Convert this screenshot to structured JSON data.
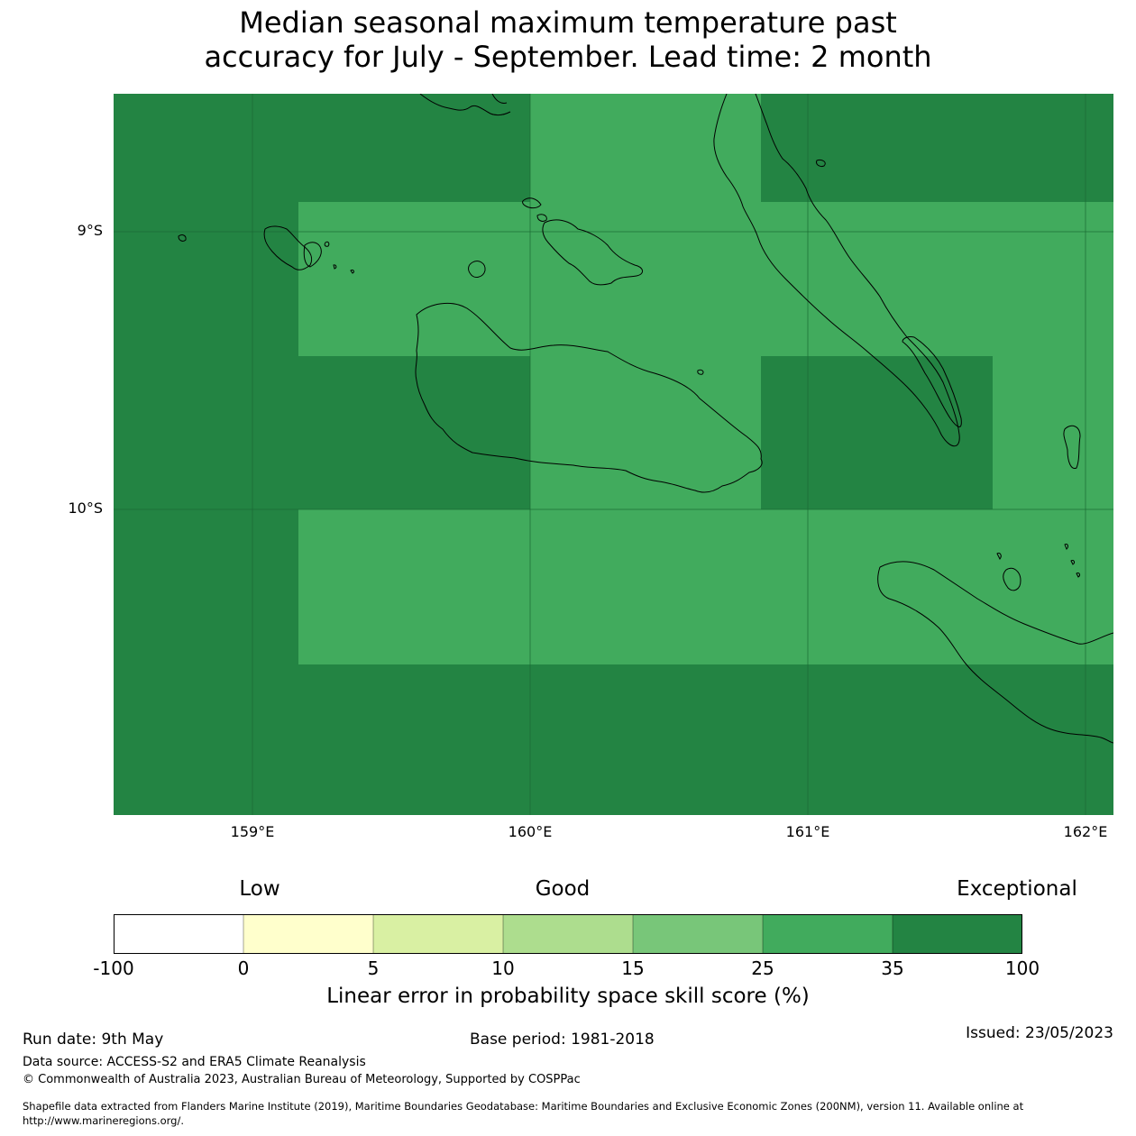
{
  "title": {
    "line1": "Median seasonal maximum temperature past",
    "line2": "accuracy for July - September. Lead time: 2 month"
  },
  "map": {
    "lat_labels": [
      "9°S",
      "10°S"
    ],
    "lon_labels": [
      "159°E",
      "160°E",
      "161°E",
      "162°E"
    ],
    "colors": {
      "exceptional": "#238443",
      "very_good": "#41ab5d",
      "coastline": "#000000",
      "gridline": "#1a6a33"
    }
  },
  "legend": {
    "categories": {
      "low": "Low",
      "good": "Good",
      "exceptional": "Exceptional"
    },
    "ticks": [
      "-100",
      "0",
      "5",
      "10",
      "15",
      "25",
      "35",
      "100"
    ],
    "colors": [
      "#ffffff",
      "#ffffcc",
      "#d9f0a3",
      "#addd8e",
      "#78c679",
      "#41ab5d",
      "#238443"
    ],
    "label": "Linear error in probability space skill score (%)"
  },
  "footer": {
    "run_date": "Run date: 9th May",
    "base_period": "Base period: 1981-2018",
    "issued": "Issued: 23/05/2023",
    "data_source": "Data source: ACCESS-S2 and ERA5 Climate Reanalysis",
    "copyright": "© Commonwealth of Australia 2023, Australian Bureau of Meteorology, Supported by COSPPac",
    "shapefile_line1": "Shapefile data extracted from Flanders Marine Institute (2019), Maritime Boundaries Geodatabase: Maritime Boundaries and Exclusive Economic Zones (200NM), version 11. Available online at",
    "shapefile_line2": "http://www.marineregions.org/."
  }
}
